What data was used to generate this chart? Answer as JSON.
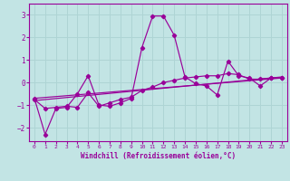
{
  "xlabel": "Windchill (Refroidissement éolien,°C)",
  "xlim": [
    -0.5,
    23.5
  ],
  "ylim": [
    -2.6,
    3.5
  ],
  "yticks": [
    -2,
    -1,
    0,
    1,
    2,
    3
  ],
  "xticks": [
    0,
    1,
    2,
    3,
    4,
    5,
    6,
    7,
    8,
    9,
    10,
    11,
    12,
    13,
    14,
    15,
    16,
    17,
    18,
    19,
    20,
    21,
    22,
    23
  ],
  "bg_color": "#c2e4e4",
  "line_color": "#990099",
  "grid_color": "#aed4d4",
  "lines": [
    {
      "x": [
        0,
        1,
        2,
        3,
        4,
        5,
        6,
        7,
        8,
        9,
        10,
        11,
        12,
        13,
        14,
        15,
        16,
        17,
        18,
        19,
        20,
        21,
        22,
        23
      ],
      "y": [
        -0.7,
        -2.3,
        -1.15,
        -1.1,
        -0.5,
        0.3,
        -1.0,
        -1.05,
        -0.9,
        -0.7,
        1.55,
        2.95,
        2.95,
        2.1,
        0.25,
        -0.05,
        -0.15,
        -0.55,
        0.95,
        0.3,
        0.2,
        -0.15,
        0.2,
        0.2
      ],
      "marker": true
    },
    {
      "x": [
        0,
        1,
        2,
        3,
        4,
        5,
        6,
        7,
        8,
        9,
        10,
        11,
        12,
        13,
        14,
        15,
        16,
        17,
        18,
        19,
        20,
        21,
        22,
        23
      ],
      "y": [
        -0.75,
        -1.15,
        -1.1,
        -1.05,
        -1.1,
        -0.45,
        -1.05,
        -0.9,
        -0.75,
        -0.65,
        -0.35,
        -0.2,
        0.0,
        0.1,
        0.2,
        0.25,
        0.3,
        0.3,
        0.4,
        0.35,
        0.15,
        0.15,
        0.2,
        0.2
      ],
      "marker": true
    },
    {
      "x": [
        0,
        23
      ],
      "y": [
        -0.7,
        0.2
      ],
      "marker": false
    },
    {
      "x": [
        0,
        23
      ],
      "y": [
        -0.8,
        0.25
      ],
      "marker": false
    }
  ]
}
